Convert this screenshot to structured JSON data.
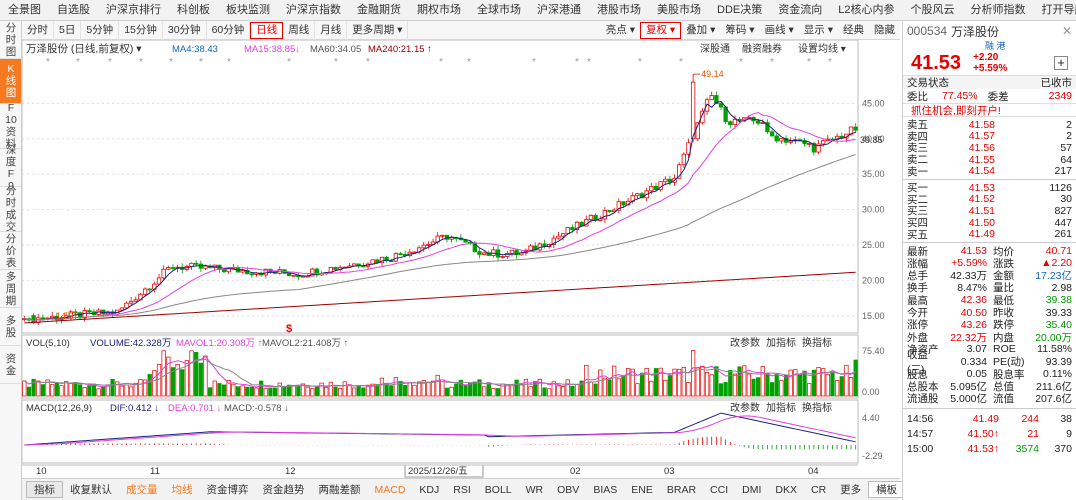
{
  "menu": [
    "全景图",
    "自选股",
    "沪深京排行",
    "科创板",
    "板块监测",
    "沪深京指数",
    "金融期货",
    "期权市场",
    "全球市场",
    "沪深港通",
    "港股市场",
    "美股市场",
    "DDE决策",
    "资金流向",
    "L2核心内参",
    "个股风云",
    "分析师指数",
    "打开导航",
    "返回"
  ],
  "lefttabs": [
    "分时图",
    "K线图",
    "F10资料",
    "深度F9",
    "分时成交",
    "分价表",
    "多周期",
    "多股",
    "资金"
  ],
  "periods": [
    "分时",
    "5日",
    "5分钟",
    "15分钟",
    "30分钟",
    "60分钟",
    "日线",
    "周线",
    "月线",
    "更多周期"
  ],
  "periodsRight": [
    "亮点",
    "复权",
    "叠加",
    "筹码",
    "画线",
    "显示",
    "经典",
    "隐藏"
  ],
  "kline": {
    "stock": "万泽股份",
    "mode": "(日线,前复权)",
    "ma4": "MA4:38.43",
    "ma15": "MA15:38.85",
    "ma60": "MA60:34.05",
    "ma240": "MA240:21.15",
    "links": [
      "深股通",
      "融资融券",
      "设置均线"
    ],
    "yTicks": [
      "45.00",
      "40.00",
      "35.00",
      "30.00",
      "25.00",
      "20.00",
      "15.00"
    ],
    "cur": "39.85",
    "hi": "49.14",
    "lo": "14.97"
  },
  "vol": {
    "label": "VOL(5,10)",
    "v1": "VOLUME:42.328万",
    "v2": "MAVOL1:20.308万",
    "v3": "MAVOL2:21.408万",
    "links": [
      "改参数",
      "加指标",
      "换指标"
    ],
    "yTicks": [
      "75.40",
      "0.00"
    ]
  },
  "macd": {
    "label": "MACD(12,26,9)",
    "dif": "DIF:0.412",
    "dea": "DEA:0.701",
    "mc": "MACD:-0.578",
    "links": [
      "改参数",
      "加指标",
      "换指标"
    ],
    "yTicks": [
      "4.40",
      "-2.29"
    ]
  },
  "xaxis": {
    "labels": [
      "10",
      "11",
      "12",
      "2025/12/26/五",
      "02",
      "03",
      "04"
    ]
  },
  "indtabs": [
    "指标",
    "收复默认",
    "成交量",
    "均线",
    "资金博弈",
    "资金趋势",
    "两融差额",
    "MACD",
    "KDJ",
    "RSI",
    "BOLL",
    "WR",
    "OBV",
    "BIAS",
    "ENE",
    "BRAR",
    "CCI",
    "DMI",
    "DKX",
    "CR",
    "更多",
    "横板"
  ],
  "panel": {
    "code": "000534",
    "name": "万泽股份",
    "tag": "融 港",
    "price": "41.53",
    "chg": "+2.20",
    "pct": "+5.59%",
    "status": "交易状态",
    "statusVal": "已收市",
    "wbLabel": "委比",
    "wb": "77.45%",
    "wcLabel": "委差",
    "wc": "2349",
    "promo": "抓住机会,即刻开户!",
    "sells": [
      [
        "卖五",
        "41.58",
        "2"
      ],
      [
        "卖四",
        "41.57",
        "2"
      ],
      [
        "卖三",
        "41.56",
        "57"
      ],
      [
        "卖二",
        "41.55",
        "64"
      ],
      [
        "卖一",
        "41.54",
        "217"
      ]
    ],
    "buys": [
      [
        "买一",
        "41.53",
        "1126"
      ],
      [
        "买二",
        "41.52",
        "30"
      ],
      [
        "买三",
        "41.51",
        "827"
      ],
      [
        "买四",
        "41.50",
        "447"
      ],
      [
        "买五",
        "41.49",
        "261"
      ]
    ],
    "stats": [
      [
        "最新",
        "41.53",
        "均价",
        "40.71"
      ],
      [
        "涨幅",
        "+5.59%",
        "涨跌",
        "▲2.20"
      ],
      [
        "总手",
        "42.33万",
        "金额",
        "17.23亿"
      ],
      [
        "换手",
        "8.47%",
        "量比",
        "2.98"
      ],
      [
        "最高",
        "42.36",
        "最低",
        "39.38"
      ],
      [
        "今开",
        "40.50",
        "昨收",
        "39.33"
      ],
      [
        "涨停",
        "43.26",
        "跌停",
        "35.40"
      ],
      [
        "外盘",
        "22.32万",
        "内盘",
        "20.00万"
      ],
      [
        "净资产",
        "3.07",
        "ROE",
        "11.58%"
      ],
      [
        "收益(三)",
        "0.334",
        "PE(动)",
        "93.39"
      ],
      [
        "股息",
        "0.05",
        "股息率",
        "0.11%"
      ],
      [
        "总股本",
        "5.095亿",
        "总值",
        "211.6亿"
      ],
      [
        "流通股",
        "5.000亿",
        "流值",
        "207.6亿"
      ]
    ],
    "ticks": [
      [
        "14:56",
        "41.49",
        "244",
        "38"
      ],
      [
        "14:57",
        "41.50",
        "21",
        "9"
      ],
      [
        "15:00",
        "41.53",
        "3574",
        "370"
      ]
    ]
  }
}
